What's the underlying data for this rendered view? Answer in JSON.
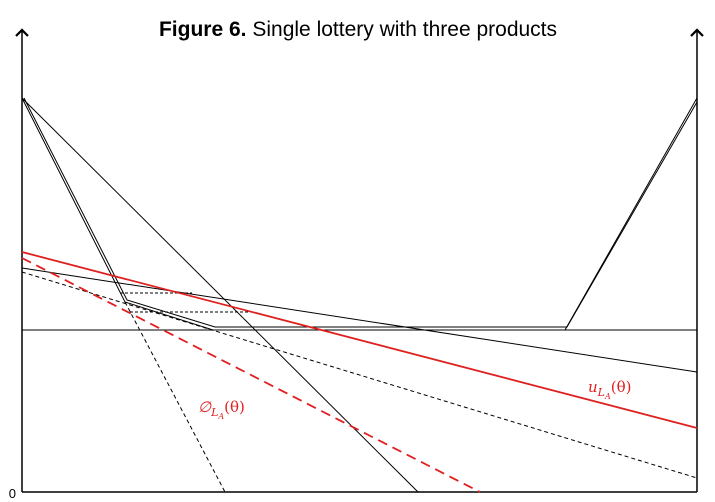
{
  "header": {
    "figure_number": "Figure 6.",
    "title": "Single lottery with three products"
  },
  "origin_label": "0",
  "labels": [
    {
      "symbol": "∅",
      "subscript": "L",
      "subsubscript": "A",
      "argument": "(θ)"
    },
    {
      "symbol": "u",
      "subscript": "L",
      "subsubscript": "A",
      "argument": "(θ)"
    }
  ]
}
